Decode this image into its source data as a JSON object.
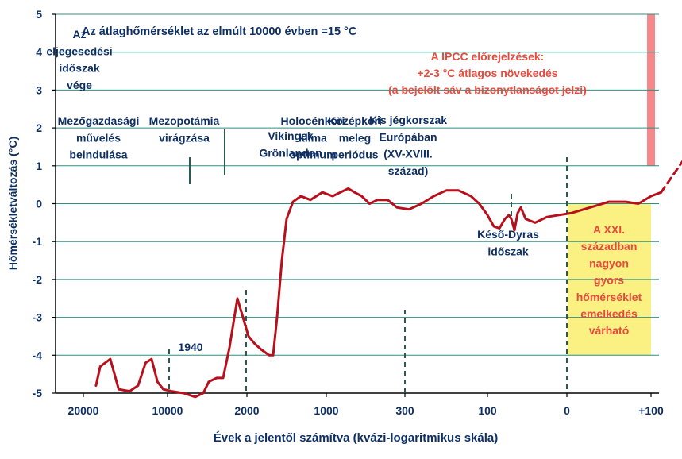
{
  "chart_data": {
    "type": "line",
    "title": "Az átlaghőmérséklet az elmúlt 10000 évben =15 °C",
    "xlabel": "Évek a jelentől számítva (kvázi-logaritmikus skála)",
    "ylabel": "Hőmérsékletváltozás (°C)",
    "x_scale": "quasi-logarithmic",
    "x_ticks": [
      "20000",
      "10000",
      "2000",
      "1000",
      "300",
      "100",
      "0",
      "+100"
    ],
    "ylim": [
      -5,
      5
    ],
    "y_ticks": [
      "5",
      "4",
      "3",
      "2",
      "1",
      "0",
      "-1",
      "-2",
      "-3",
      "-4",
      "-5"
    ],
    "grid": true,
    "colors": {
      "line": "#b80f1c",
      "grid": "#2f8f7f",
      "axis": "#000000",
      "text": "#0e2f63",
      "ipcc_text": "#e84a3e",
      "ipcc_band": "#f4888a",
      "forecast_bg": "#fbf082",
      "marker": "#2a5a52"
    },
    "series": [
      {
        "style": "solid",
        "points": [
          [
            0.15,
            -4.8
          ],
          [
            0.2,
            -4.3
          ],
          [
            0.32,
            -4.1
          ],
          [
            0.42,
            -4.9
          ],
          [
            0.55,
            -4.95
          ],
          [
            0.65,
            -4.8
          ],
          [
            0.74,
            -4.2
          ],
          [
            0.81,
            -4.1
          ],
          [
            0.88,
            -4.7
          ],
          [
            0.95,
            -4.9
          ],
          [
            1.05,
            -4.95
          ],
          [
            1.2,
            -5.0
          ],
          [
            1.35,
            -5.1
          ],
          [
            1.45,
            -5.0
          ],
          [
            1.52,
            -4.7
          ],
          [
            1.62,
            -4.6
          ],
          [
            1.7,
            -4.6
          ],
          [
            1.78,
            -3.8
          ],
          [
            1.88,
            -2.5
          ],
          [
            1.95,
            -3.0
          ],
          [
            2.02,
            -3.5
          ],
          [
            2.1,
            -3.7
          ],
          [
            2.18,
            -3.85
          ],
          [
            2.28,
            -4.0
          ],
          [
            2.33,
            -4.0
          ],
          [
            2.38,
            -3.0
          ],
          [
            2.44,
            -1.5
          ],
          [
            2.5,
            -0.4
          ],
          [
            2.58,
            0.05
          ],
          [
            2.68,
            0.2
          ],
          [
            2.8,
            0.1
          ],
          [
            2.95,
            0.3
          ],
          [
            3.08,
            0.2
          ],
          [
            3.18,
            0.3
          ],
          [
            3.28,
            0.4
          ],
          [
            3.36,
            0.3
          ],
          [
            3.45,
            0.2
          ],
          [
            3.55,
            0.0
          ],
          [
            3.65,
            0.1
          ],
          [
            3.78,
            0.1
          ],
          [
            3.9,
            -0.1
          ],
          [
            4.05,
            -0.15
          ],
          [
            4.2,
            0.0
          ],
          [
            4.35,
            0.2
          ],
          [
            4.5,
            0.35
          ],
          [
            4.65,
            0.35
          ],
          [
            4.8,
            0.2
          ],
          [
            4.9,
            0.0
          ],
          [
            5.0,
            -0.3
          ],
          [
            5.08,
            -0.6
          ],
          [
            5.15,
            -0.65
          ],
          [
            5.22,
            -0.4
          ],
          [
            5.27,
            -0.3
          ],
          [
            5.3,
            -0.4
          ],
          [
            5.34,
            -0.7
          ],
          [
            5.38,
            -0.25
          ],
          [
            5.42,
            -0.1
          ],
          [
            5.48,
            -0.4
          ],
          [
            5.6,
            -0.5
          ],
          [
            5.75,
            -0.35
          ],
          [
            5.9,
            -0.3
          ],
          [
            6.05,
            -0.25
          ],
          [
            6.2,
            -0.15
          ],
          [
            6.35,
            -0.05
          ],
          [
            6.5,
            0.05
          ],
          [
            6.7,
            0.05
          ],
          [
            6.85,
            0.0
          ],
          [
            7.0,
            0.2
          ],
          [
            7.12,
            0.3
          ]
        ]
      },
      {
        "style": "dashed",
        "points": [
          [
            7.12,
            0.3
          ],
          [
            7.4,
            1.2
          ],
          [
            7.7,
            2.2
          ],
          [
            8.1,
            3.2
          ]
        ]
      }
    ],
    "annotations": [
      {
        "lines": [
          "Az",
          "eljegesedési",
          "időszak",
          "vége"
        ]
      },
      {
        "lines": [
          "Mezőgazdasági",
          "művelés",
          "beindulása"
        ]
      },
      {
        "lines": [
          "Mezopotámia",
          "virágzása"
        ]
      },
      {
        "lines": [
          "Vikingek",
          "Grönlandon"
        ]
      },
      {
        "lines": [
          "Holocénkori",
          "klíma",
          "optimum"
        ]
      },
      {
        "lines": [
          "Középkori",
          "meleg",
          "periódus"
        ]
      },
      {
        "lines": [
          "Kis jégkorszak",
          "Európában",
          "(XV-XVIII.",
          "század)"
        ]
      },
      {
        "lines": [
          "Késő-Dyras",
          "időszak"
        ]
      },
      {
        "lines": [
          "1940"
        ]
      }
    ],
    "ipcc_note": [
      "A IPCC előrejelzések:",
      "+2-3 °C átlagos növekedés",
      "(a bejelölt sáv a bizonytlanságot jelzi)"
    ],
    "ipcc_band": {
      "x_from": "+100",
      "y_range": [
        1,
        5
      ]
    },
    "forecast_box": {
      "x_from": "0",
      "x_to": "+100",
      "y_range": [
        -4,
        0
      ],
      "lines": [
        "A XXI.",
        "században",
        "nagyon",
        "gyors",
        "hőmérséklet",
        "emelkedés",
        "várható"
      ]
    }
  }
}
